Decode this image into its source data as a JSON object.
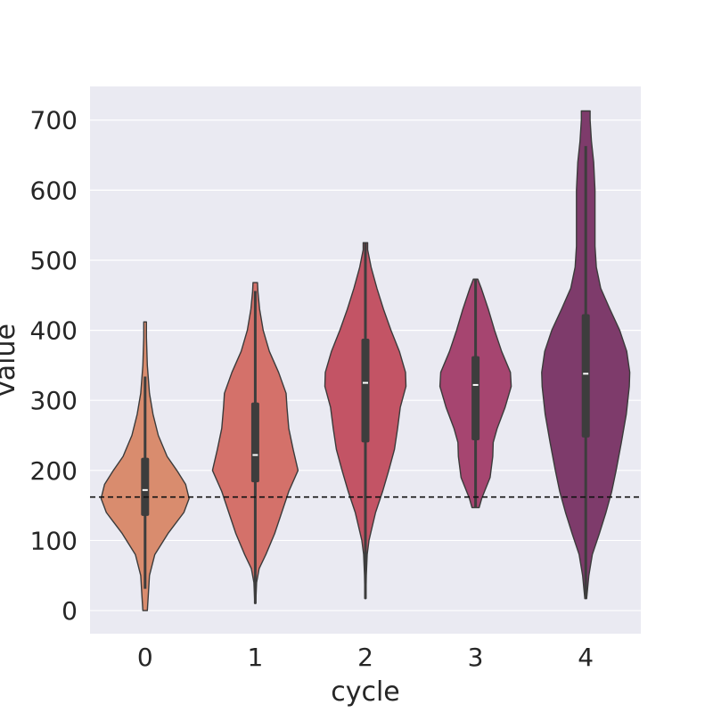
{
  "chart_data": {
    "type": "violin",
    "xlabel": "cycle",
    "ylabel": "value",
    "categories": [
      "0",
      "1",
      "2",
      "3",
      "4"
    ],
    "yticks": [
      0,
      100,
      200,
      300,
      400,
      500,
      600,
      700
    ],
    "ylim": [
      -33,
      748
    ],
    "grid": true,
    "reference_line": {
      "y": 162,
      "style": "dashed",
      "color": "#111111"
    },
    "colors": [
      "#d98c6e",
      "#d4716a",
      "#c35465",
      "#a64570",
      "#7e3b6b"
    ],
    "violins": [
      {
        "category": "0",
        "range": [
          0,
          412
        ],
        "whisker": [
          31,
          334
        ],
        "q1": 135,
        "median": 172,
        "q3": 218,
        "density": [
          [
            0,
            0.05
          ],
          [
            20,
            0.07
          ],
          [
            50,
            0.1
          ],
          [
            80,
            0.22
          ],
          [
            110,
            0.52
          ],
          [
            140,
            0.88
          ],
          [
            160,
            1.0
          ],
          [
            180,
            0.92
          ],
          [
            200,
            0.72
          ],
          [
            220,
            0.5
          ],
          [
            250,
            0.3
          ],
          [
            280,
            0.18
          ],
          [
            310,
            0.1
          ],
          [
            350,
            0.05
          ],
          [
            390,
            0.03
          ],
          [
            412,
            0.03
          ]
        ]
      },
      {
        "category": "1",
        "range": [
          10,
          468
        ],
        "whisker": [
          10,
          456
        ],
        "q1": 183,
        "median": 222,
        "q3": 297,
        "density": [
          [
            10,
            0.01
          ],
          [
            40,
            0.03
          ],
          [
            60,
            0.09
          ],
          [
            80,
            0.24
          ],
          [
            110,
            0.44
          ],
          [
            140,
            0.6
          ],
          [
            170,
            0.76
          ],
          [
            200,
            0.97
          ],
          [
            230,
            0.86
          ],
          [
            260,
            0.76
          ],
          [
            290,
            0.72
          ],
          [
            310,
            0.7
          ],
          [
            340,
            0.53
          ],
          [
            370,
            0.32
          ],
          [
            400,
            0.18
          ],
          [
            430,
            0.1
          ],
          [
            455,
            0.06
          ],
          [
            468,
            0.05
          ]
        ]
      },
      {
        "category": "2",
        "range": [
          17,
          525
        ],
        "whisker": [
          17,
          525
        ],
        "q1": 240,
        "median": 325,
        "q3": 388,
        "density": [
          [
            17,
            0.01
          ],
          [
            50,
            0.02
          ],
          [
            80,
            0.04
          ],
          [
            100,
            0.08
          ],
          [
            140,
            0.23
          ],
          [
            170,
            0.39
          ],
          [
            200,
            0.53
          ],
          [
            230,
            0.66
          ],
          [
            260,
            0.73
          ],
          [
            290,
            0.79
          ],
          [
            320,
            0.92
          ],
          [
            340,
            0.91
          ],
          [
            370,
            0.77
          ],
          [
            400,
            0.58
          ],
          [
            430,
            0.41
          ],
          [
            460,
            0.26
          ],
          [
            490,
            0.13
          ],
          [
            515,
            0.05
          ],
          [
            525,
            0.05
          ]
        ]
      },
      {
        "category": "3",
        "range": [
          147,
          473
        ],
        "whisker": [
          147,
          473
        ],
        "q1": 243,
        "median": 322,
        "q3": 363,
        "density": [
          [
            147,
            0.08
          ],
          [
            160,
            0.14
          ],
          [
            190,
            0.33
          ],
          [
            220,
            0.39
          ],
          [
            240,
            0.4
          ],
          [
            260,
            0.49
          ],
          [
            290,
            0.67
          ],
          [
            320,
            0.81
          ],
          [
            340,
            0.79
          ],
          [
            370,
            0.59
          ],
          [
            400,
            0.43
          ],
          [
            430,
            0.29
          ],
          [
            460,
            0.13
          ],
          [
            473,
            0.05
          ]
        ]
      },
      {
        "category": "4",
        "range": [
          17,
          713
        ],
        "whisker": [
          17,
          663
        ],
        "q1": 247,
        "median": 338,
        "q3": 423,
        "density": [
          [
            17,
            0.02
          ],
          [
            50,
            0.07
          ],
          [
            80,
            0.15
          ],
          [
            110,
            0.31
          ],
          [
            140,
            0.46
          ],
          [
            170,
            0.59
          ],
          [
            200,
            0.69
          ],
          [
            240,
            0.81
          ],
          [
            280,
            0.92
          ],
          [
            320,
            0.99
          ],
          [
            340,
            1.0
          ],
          [
            370,
            0.93
          ],
          [
            400,
            0.77
          ],
          [
            430,
            0.55
          ],
          [
            460,
            0.34
          ],
          [
            490,
            0.24
          ],
          [
            520,
            0.21
          ],
          [
            560,
            0.21
          ],
          [
            600,
            0.21
          ],
          [
            640,
            0.18
          ],
          [
            670,
            0.13
          ],
          [
            700,
            0.1
          ],
          [
            713,
            0.1
          ]
        ]
      }
    ]
  }
}
